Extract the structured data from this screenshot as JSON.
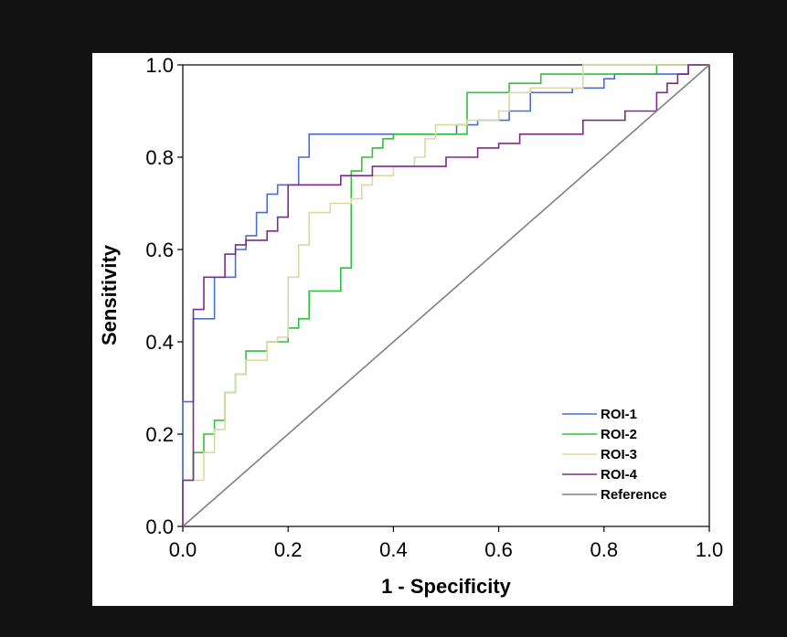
{
  "chart_data": {
    "type": "line",
    "title": "",
    "xlabel": "1 - Specificity",
    "ylabel": "Sensitivity",
    "xlim": [
      0.0,
      1.0
    ],
    "ylim": [
      0.0,
      1.0
    ],
    "x_ticks": [
      "0.0",
      "0.2",
      "0.4",
      "0.6",
      "0.8",
      "1.0"
    ],
    "y_ticks": [
      "0.0",
      "0.2",
      "0.4",
      "0.6",
      "0.8",
      "1.0"
    ],
    "legend_position": "bottom-right",
    "series": [
      {
        "name": "ROI-1",
        "color": "#4a6fd0",
        "points": [
          [
            0,
            0
          ],
          [
            0,
            0.27
          ],
          [
            0.02,
            0.27
          ],
          [
            0.02,
            0.45
          ],
          [
            0.06,
            0.45
          ],
          [
            0.06,
            0.54
          ],
          [
            0.1,
            0.54
          ],
          [
            0.1,
            0.6
          ],
          [
            0.12,
            0.6
          ],
          [
            0.12,
            0.63
          ],
          [
            0.14,
            0.63
          ],
          [
            0.14,
            0.68
          ],
          [
            0.16,
            0.68
          ],
          [
            0.16,
            0.72
          ],
          [
            0.18,
            0.72
          ],
          [
            0.18,
            0.74
          ],
          [
            0.22,
            0.74
          ],
          [
            0.22,
            0.8
          ],
          [
            0.24,
            0.8
          ],
          [
            0.24,
            0.85
          ],
          [
            0.52,
            0.85
          ],
          [
            0.52,
            0.87
          ],
          [
            0.56,
            0.87
          ],
          [
            0.56,
            0.88
          ],
          [
            0.62,
            0.88
          ],
          [
            0.62,
            0.9
          ],
          [
            0.66,
            0.9
          ],
          [
            0.66,
            0.94
          ],
          [
            0.74,
            0.94
          ],
          [
            0.74,
            0.95
          ],
          [
            0.8,
            0.95
          ],
          [
            0.8,
            0.97
          ],
          [
            0.82,
            0.97
          ],
          [
            0.82,
            0.98
          ],
          [
            0.96,
            0.98
          ],
          [
            0.96,
            1.0
          ],
          [
            1.0,
            1.0
          ]
        ]
      },
      {
        "name": "ROI-2",
        "color": "#2fc23a",
        "points": [
          [
            0,
            0
          ],
          [
            0,
            0.1
          ],
          [
            0.02,
            0.1
          ],
          [
            0.02,
            0.16
          ],
          [
            0.04,
            0.16
          ],
          [
            0.04,
            0.2
          ],
          [
            0.06,
            0.2
          ],
          [
            0.06,
            0.23
          ],
          [
            0.08,
            0.23
          ],
          [
            0.08,
            0.29
          ],
          [
            0.1,
            0.29
          ],
          [
            0.1,
            0.33
          ],
          [
            0.12,
            0.33
          ],
          [
            0.12,
            0.38
          ],
          [
            0.16,
            0.38
          ],
          [
            0.16,
            0.4
          ],
          [
            0.2,
            0.4
          ],
          [
            0.2,
            0.43
          ],
          [
            0.22,
            0.43
          ],
          [
            0.22,
            0.45
          ],
          [
            0.24,
            0.45
          ],
          [
            0.24,
            0.51
          ],
          [
            0.3,
            0.51
          ],
          [
            0.3,
            0.56
          ],
          [
            0.32,
            0.56
          ],
          [
            0.32,
            0.77
          ],
          [
            0.34,
            0.77
          ],
          [
            0.34,
            0.8
          ],
          [
            0.36,
            0.8
          ],
          [
            0.36,
            0.82
          ],
          [
            0.38,
            0.82
          ],
          [
            0.38,
            0.84
          ],
          [
            0.4,
            0.84
          ],
          [
            0.4,
            0.85
          ],
          [
            0.54,
            0.85
          ],
          [
            0.54,
            0.94
          ],
          [
            0.62,
            0.94
          ],
          [
            0.62,
            0.96
          ],
          [
            0.68,
            0.96
          ],
          [
            0.68,
            0.98
          ],
          [
            0.9,
            0.98
          ],
          [
            0.9,
            1.0
          ],
          [
            1.0,
            1.0
          ]
        ]
      },
      {
        "name": "ROI-3",
        "color": "#dcd8a0",
        "points": [
          [
            0,
            0
          ],
          [
            0,
            0.1
          ],
          [
            0.04,
            0.1
          ],
          [
            0.04,
            0.16
          ],
          [
            0.06,
            0.16
          ],
          [
            0.06,
            0.21
          ],
          [
            0.08,
            0.21
          ],
          [
            0.08,
            0.29
          ],
          [
            0.1,
            0.29
          ],
          [
            0.1,
            0.33
          ],
          [
            0.12,
            0.33
          ],
          [
            0.12,
            0.36
          ],
          [
            0.16,
            0.36
          ],
          [
            0.16,
            0.4
          ],
          [
            0.18,
            0.4
          ],
          [
            0.18,
            0.41
          ],
          [
            0.2,
            0.41
          ],
          [
            0.2,
            0.54
          ],
          [
            0.22,
            0.54
          ],
          [
            0.22,
            0.61
          ],
          [
            0.24,
            0.61
          ],
          [
            0.24,
            0.68
          ],
          [
            0.28,
            0.68
          ],
          [
            0.28,
            0.7
          ],
          [
            0.32,
            0.7
          ],
          [
            0.32,
            0.71
          ],
          [
            0.34,
            0.71
          ],
          [
            0.34,
            0.74
          ],
          [
            0.36,
            0.74
          ],
          [
            0.36,
            0.76
          ],
          [
            0.4,
            0.76
          ],
          [
            0.4,
            0.78
          ],
          [
            0.44,
            0.78
          ],
          [
            0.44,
            0.8
          ],
          [
            0.46,
            0.8
          ],
          [
            0.46,
            0.84
          ],
          [
            0.48,
            0.84
          ],
          [
            0.48,
            0.87
          ],
          [
            0.54,
            0.87
          ],
          [
            0.54,
            0.88
          ],
          [
            0.6,
            0.88
          ],
          [
            0.6,
            0.9
          ],
          [
            0.62,
            0.9
          ],
          [
            0.62,
            0.94
          ],
          [
            0.66,
            0.94
          ],
          [
            0.66,
            0.95
          ],
          [
            0.76,
            0.95
          ],
          [
            0.76,
            1.0
          ],
          [
            1.0,
            1.0
          ]
        ]
      },
      {
        "name": "ROI-4",
        "color": "#7e2a8e",
        "points": [
          [
            0,
            0
          ],
          [
            0,
            0.1
          ],
          [
            0.02,
            0.1
          ],
          [
            0.02,
            0.47
          ],
          [
            0.04,
            0.47
          ],
          [
            0.04,
            0.54
          ],
          [
            0.08,
            0.54
          ],
          [
            0.08,
            0.59
          ],
          [
            0.1,
            0.59
          ],
          [
            0.1,
            0.61
          ],
          [
            0.12,
            0.61
          ],
          [
            0.12,
            0.62
          ],
          [
            0.16,
            0.62
          ],
          [
            0.16,
            0.64
          ],
          [
            0.18,
            0.64
          ],
          [
            0.18,
            0.67
          ],
          [
            0.2,
            0.67
          ],
          [
            0.2,
            0.74
          ],
          [
            0.3,
            0.74
          ],
          [
            0.3,
            0.76
          ],
          [
            0.36,
            0.76
          ],
          [
            0.36,
            0.78
          ],
          [
            0.5,
            0.78
          ],
          [
            0.5,
            0.8
          ],
          [
            0.56,
            0.8
          ],
          [
            0.56,
            0.82
          ],
          [
            0.6,
            0.82
          ],
          [
            0.6,
            0.83
          ],
          [
            0.64,
            0.83
          ],
          [
            0.64,
            0.85
          ],
          [
            0.76,
            0.85
          ],
          [
            0.76,
            0.88
          ],
          [
            0.84,
            0.88
          ],
          [
            0.84,
            0.9
          ],
          [
            0.9,
            0.9
          ],
          [
            0.9,
            0.94
          ],
          [
            0.92,
            0.94
          ],
          [
            0.92,
            0.96
          ],
          [
            0.94,
            0.96
          ],
          [
            0.94,
            0.98
          ],
          [
            0.96,
            0.98
          ],
          [
            0.96,
            1.0
          ],
          [
            1.0,
            1.0
          ]
        ]
      },
      {
        "name": "Reference",
        "color": "#808080",
        "points": [
          [
            0,
            0
          ],
          [
            1,
            1
          ]
        ]
      }
    ]
  }
}
